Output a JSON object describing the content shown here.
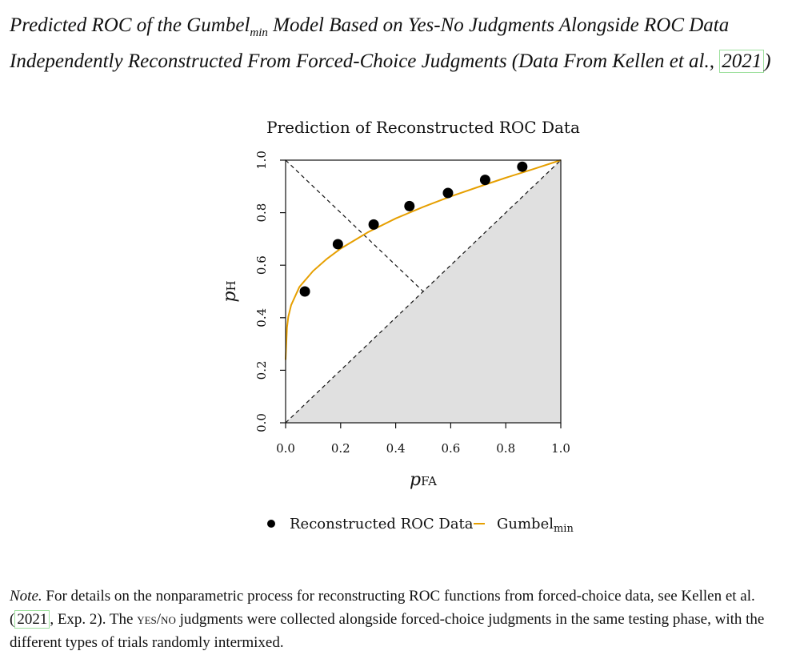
{
  "caption": {
    "text_a": "Predicted ROC of the Gumbel",
    "sub": "min",
    "text_b": " Model Based on Yes-No Judgments Alongside ROC Data Independently Reconstructed From Forced-Choice Judgments (Data From Kellen et al., ",
    "cite": "2021",
    "text_c": ")"
  },
  "chart_data": {
    "type": "scatter",
    "title": "Prediction of Reconstructed ROC Data",
    "xlabel": "p",
    "xlabel_sub": "FA",
    "ylabel": "p",
    "ylabel_sub": "H",
    "xlim": [
      0,
      1
    ],
    "ylim": [
      0,
      1
    ],
    "xticks": [
      "0.0",
      "0.2",
      "0.4",
      "0.6",
      "0.8",
      "1.0"
    ],
    "yticks": [
      "0.0",
      "0.2",
      "0.4",
      "0.6",
      "0.8",
      "1.0"
    ],
    "grid": false,
    "legend_position": "bottom",
    "series": [
      {
        "name": "Reconstructed ROC Data",
        "marker": "filled-circle",
        "color": "#000000",
        "points": [
          {
            "x": 0.07,
            "y": 0.5
          },
          {
            "x": 0.19,
            "y": 0.68
          },
          {
            "x": 0.32,
            "y": 0.755
          },
          {
            "x": 0.45,
            "y": 0.825
          },
          {
            "x": 0.59,
            "y": 0.875
          },
          {
            "x": 0.725,
            "y": 0.925
          },
          {
            "x": 0.86,
            "y": 0.975
          }
        ]
      },
      {
        "name": "Gumbel",
        "name_sub": "min",
        "line": "solid",
        "color": "#E69F00",
        "points": [
          {
            "x": 0.0,
            "y": 0.24
          },
          {
            "x": 0.005,
            "y": 0.362
          },
          {
            "x": 0.01,
            "y": 0.404
          },
          {
            "x": 0.02,
            "y": 0.448
          },
          {
            "x": 0.05,
            "y": 0.517
          },
          {
            "x": 0.1,
            "y": 0.578
          },
          {
            "x": 0.15,
            "y": 0.624
          },
          {
            "x": 0.2,
            "y": 0.663
          },
          {
            "x": 0.3,
            "y": 0.726
          },
          {
            "x": 0.4,
            "y": 0.778
          },
          {
            "x": 0.5,
            "y": 0.822
          },
          {
            "x": 0.6,
            "y": 0.862
          },
          {
            "x": 0.7,
            "y": 0.898
          },
          {
            "x": 0.8,
            "y": 0.933
          },
          {
            "x": 0.9,
            "y": 0.966
          },
          {
            "x": 1.0,
            "y": 1.0
          }
        ]
      }
    ],
    "reference_lines": [
      {
        "from": [
          0,
          0
        ],
        "to": [
          1,
          1
        ],
        "style": "dashed"
      },
      {
        "from": [
          0,
          1
        ],
        "to": [
          0.5,
          0.5
        ],
        "style": "dashed"
      }
    ],
    "shaded_region": {
      "polygon": [
        [
          0,
          0
        ],
        [
          1,
          0
        ],
        [
          1,
          1
        ]
      ],
      "color": "#e0e0e0"
    }
  },
  "note": {
    "label": "Note.",
    "text_a": " For details on the nonparametric process for reconstructing ROC functions from forced-choice data, see Kellen et al. (",
    "cite": "2021",
    "text_b": ", Exp. 2). The ",
    "sc": "yes/no",
    "text_c": " judgments were collected alongside forced-choice judgments in the same testing phase, with the different types of trials randomly intermixed."
  }
}
